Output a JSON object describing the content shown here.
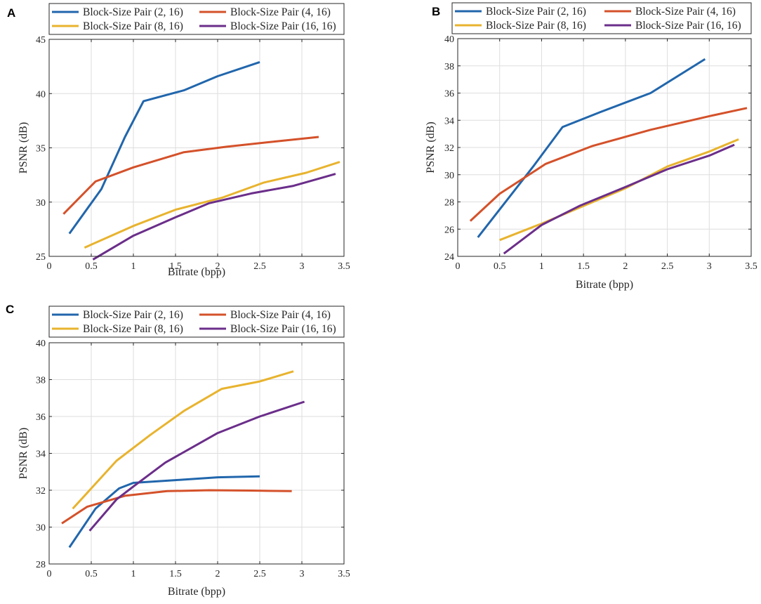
{
  "chart_data": [
    {
      "type": "line",
      "panel": "A",
      "title": "",
      "xlabel": "Bitrate (bpp)",
      "ylabel": "PSNR (dB)",
      "xlim": [
        0,
        3.5
      ],
      "ylim": [
        25,
        45
      ],
      "xticks": [
        0,
        0.5,
        1,
        1.5,
        2,
        2.5,
        3,
        3.5
      ],
      "yticks": [
        25,
        30,
        35,
        40,
        45
      ],
      "xtick_labels": [
        "0",
        "0.5",
        "1",
        "1.5",
        "2",
        "2.5",
        "3",
        "3.5"
      ],
      "ytick_labels": [
        "25",
        "30",
        "35",
        "40",
        "45"
      ],
      "grid": true,
      "legend_position": "top",
      "series": [
        {
          "name": "Block-Size Pair (2, 16)",
          "color": "#2166ac",
          "x": [
            0.24,
            0.62,
            0.9,
            1.12,
            1.6,
            2.0,
            2.5
          ],
          "y": [
            27.1,
            31.2,
            36.0,
            39.3,
            40.3,
            41.6,
            42.9
          ]
        },
        {
          "name": "Block-Size Pair (4, 16)",
          "color": "#d4512a",
          "x": [
            0.17,
            0.55,
            1.0,
            1.6,
            2.1,
            2.7,
            3.2
          ],
          "y": [
            28.9,
            31.9,
            33.2,
            34.6,
            35.1,
            35.6,
            36.0
          ]
        },
        {
          "name": "Block-Size Pair (8, 16)",
          "color": "#e8b32e",
          "x": [
            0.42,
            1.0,
            1.5,
            2.05,
            2.55,
            3.05,
            3.45
          ],
          "y": [
            25.8,
            27.8,
            29.3,
            30.4,
            31.8,
            32.7,
            33.7
          ]
        },
        {
          "name": "Block-Size Pair (16, 16)",
          "color": "#6b2e8a",
          "x": [
            0.52,
            1.0,
            1.5,
            1.9,
            2.4,
            2.9,
            3.4
          ],
          "y": [
            24.7,
            26.9,
            28.6,
            29.9,
            30.8,
            31.5,
            32.6
          ]
        }
      ]
    },
    {
      "type": "line",
      "panel": "B",
      "title": "",
      "xlabel": "Bitrate (bpp)",
      "ylabel": "PSNR (dB)",
      "xlim": [
        0,
        3.5
      ],
      "ylim": [
        24,
        40
      ],
      "xticks": [
        0,
        0.5,
        1,
        1.5,
        2,
        2.5,
        3,
        3.5
      ],
      "yticks": [
        24,
        26,
        28,
        30,
        32,
        34,
        36,
        38,
        40
      ],
      "xtick_labels": [
        "0",
        "0.5",
        "1",
        "1.5",
        "2",
        "2.5",
        "3",
        "3.5"
      ],
      "ytick_labels": [
        "24",
        "26",
        "28",
        "30",
        "32",
        "34",
        "36",
        "38",
        "40"
      ],
      "grid": true,
      "legend_position": "top",
      "series": [
        {
          "name": "Block-Size Pair (2, 16)",
          "color": "#2166ac",
          "x": [
            0.24,
            0.9,
            1.25,
            1.7,
            2.3,
            2.95
          ],
          "y": [
            25.4,
            30.6,
            33.5,
            34.6,
            36.0,
            38.5
          ]
        },
        {
          "name": "Block-Size Pair (4, 16)",
          "color": "#d4512a",
          "x": [
            0.15,
            0.5,
            1.05,
            1.6,
            2.3,
            3.0,
            3.45
          ],
          "y": [
            26.6,
            28.6,
            30.8,
            32.1,
            33.3,
            34.3,
            34.9
          ]
        },
        {
          "name": "Block-Size Pair (8, 16)",
          "color": "#e8b32e",
          "x": [
            0.5,
            1.0,
            1.5,
            2.0,
            2.5,
            3.0,
            3.35
          ],
          "y": [
            25.2,
            26.4,
            27.7,
            29.0,
            30.6,
            31.7,
            32.6
          ]
        },
        {
          "name": "Block-Size Pair (16, 16)",
          "color": "#6b2e8a",
          "x": [
            0.55,
            1.0,
            1.45,
            2.0,
            2.5,
            3.0,
            3.3
          ],
          "y": [
            24.2,
            26.3,
            27.7,
            29.1,
            30.4,
            31.4,
            32.2
          ]
        }
      ]
    },
    {
      "type": "line",
      "panel": "C",
      "title": "",
      "xlabel": "Bitrate (bpp)",
      "ylabel": "PSNR (dB)",
      "xlim": [
        0,
        3.5
      ],
      "ylim": [
        28,
        40
      ],
      "xticks": [
        0,
        0.5,
        1,
        1.5,
        2,
        2.5,
        3,
        3.5
      ],
      "yticks": [
        28,
        30,
        32,
        34,
        36,
        38,
        40
      ],
      "xtick_labels": [
        "0",
        "0.5",
        "1",
        "1.5",
        "2",
        "2.5",
        "3",
        "3.5"
      ],
      "ytick_labels": [
        "28",
        "30",
        "32",
        "34",
        "36",
        "38",
        "40"
      ],
      "grid": true,
      "legend_position": "top",
      "series": [
        {
          "name": "Block-Size Pair (2, 16)",
          "color": "#2166ac",
          "x": [
            0.24,
            0.55,
            0.83,
            1.0,
            1.5,
            2.0,
            2.5
          ],
          "y": [
            28.9,
            31.0,
            32.1,
            32.4,
            32.55,
            32.7,
            32.75
          ]
        },
        {
          "name": "Block-Size Pair (4, 16)",
          "color": "#d4512a",
          "x": [
            0.15,
            0.45,
            0.9,
            1.4,
            1.9,
            2.4,
            2.88
          ],
          "y": [
            30.2,
            31.1,
            31.7,
            31.95,
            32.0,
            31.98,
            31.95
          ]
        },
        {
          "name": "Block-Size Pair (8, 16)",
          "color": "#e8b32e",
          "x": [
            0.28,
            0.6,
            0.8,
            1.2,
            1.6,
            2.05,
            2.5,
            2.9
          ],
          "y": [
            31.0,
            32.6,
            33.6,
            35.0,
            36.3,
            37.5,
            37.9,
            38.45
          ]
        },
        {
          "name": "Block-Size Pair (16, 16)",
          "color": "#6b2e8a",
          "x": [
            0.48,
            0.8,
            1.0,
            1.38,
            2.0,
            2.5,
            2.7,
            3.03
          ],
          "y": [
            29.8,
            31.5,
            32.2,
            33.5,
            35.1,
            36.0,
            36.3,
            36.8
          ]
        }
      ]
    }
  ]
}
